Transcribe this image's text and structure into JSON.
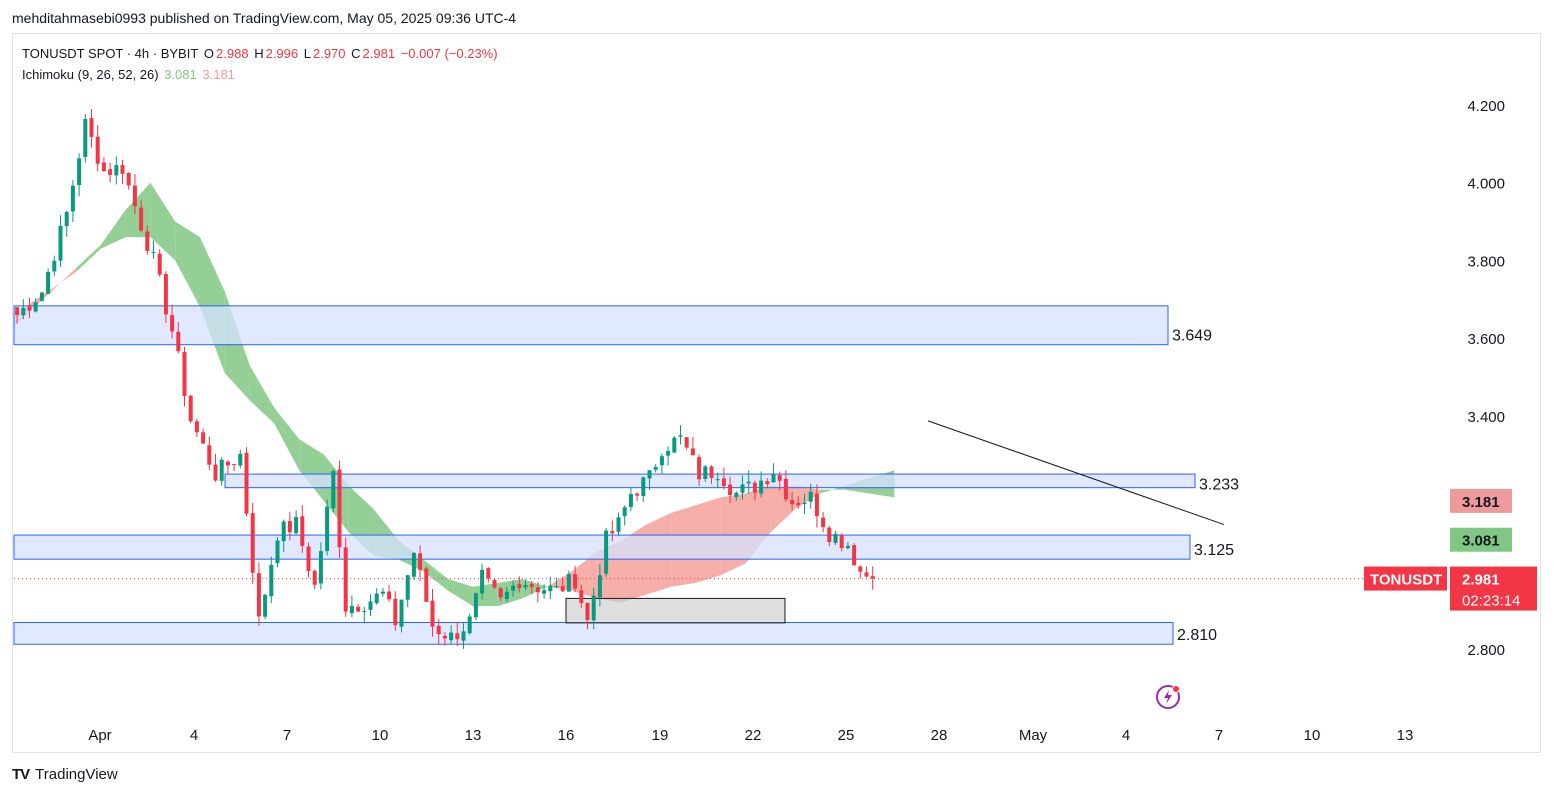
{
  "header": {
    "published": "mehditahmasebi0993 published on TradingView.com, May 05, 2025 09:36 UTC-4"
  },
  "legend": {
    "symbol": "TONUSDT SPOT · 4h · BYBIT",
    "o_label": "O",
    "o": "2.988",
    "h_label": "H",
    "h": "2.996",
    "l_label": "L",
    "l": "2.970",
    "c_label": "C",
    "c": "2.981",
    "change": "−0.007 (−0.23%)",
    "indicator": "Ichimoku (9, 26, 52, 26)",
    "ind_v1": "3.081",
    "ind_v2": "3.181"
  },
  "footer": {
    "brand": "TradingView",
    "brand_mark": "TV"
  },
  "colors": {
    "up": "#089981",
    "down": "#f23645",
    "cloud_bull": "#81c784",
    "cloud_bear": "#f4a09a",
    "zone_fill": "#d6e2ff",
    "zone_border": "#2962ff"
  },
  "chart_data": {
    "type": "candlestick",
    "symbol": "TONUSDT",
    "timeframe": "4h",
    "y_ticks": [
      "4.200",
      "4.000",
      "3.800",
      "3.600",
      "3.400",
      "2.800"
    ],
    "ylim": [
      2.62,
      4.38
    ],
    "x_ticks": [
      "Apr",
      "4",
      "7",
      "10",
      "13",
      "16",
      "19",
      "22",
      "25",
      "28",
      "May",
      "4",
      "7",
      "10",
      "13"
    ],
    "last_price": {
      "label": "TONUSDT",
      "value": "2.981",
      "countdown": "02:23:14",
      "price": 2.981
    },
    "ichimoku_labels": [
      {
        "value": "3.181",
        "price": 3.181,
        "kind": "span_b"
      },
      {
        "value": "3.081",
        "price": 3.081,
        "kind": "span_a"
      }
    ],
    "zones": [
      {
        "top": 3.683,
        "bottom": 3.583,
        "label": "3.649"
      },
      {
        "top": 3.25,
        "bottom": 3.215,
        "label": "3.233"
      },
      {
        "top": 3.093,
        "bottom": 3.031,
        "label": "3.125"
      },
      {
        "top": 2.868,
        "bottom": 2.812,
        "label": "2.810"
      }
    ],
    "small_box": {
      "top": 2.93,
      "bottom": 2.867
    },
    "trendline": {
      "from": 3.387,
      "to": 3.12
    },
    "price_path": [
      [
        0,
        3.66
      ],
      [
        4,
        3.72
      ],
      [
        8,
        3.92
      ],
      [
        11,
        4.15
      ],
      [
        14,
        4.03
      ],
      [
        17,
        4.04
      ],
      [
        19,
        3.94
      ],
      [
        22,
        3.8
      ],
      [
        25,
        3.62
      ],
      [
        28,
        3.39
      ],
      [
        32,
        3.25
      ],
      [
        36,
        3.3
      ],
      [
        39,
        2.87
      ],
      [
        42,
        3.1
      ],
      [
        45,
        3.12
      ],
      [
        48,
        2.96
      ],
      [
        51,
        3.25
      ],
      [
        53,
        2.91
      ],
      [
        56,
        2.92
      ],
      [
        59,
        2.94
      ],
      [
        61,
        2.87
      ],
      [
        64,
        3.05
      ],
      [
        67,
        2.86
      ],
      [
        70,
        2.83
      ],
      [
        73,
        2.87
      ],
      [
        75,
        2.98
      ],
      [
        78,
        2.92
      ],
      [
        81,
        2.98
      ],
      [
        84,
        2.96
      ],
      [
        87,
        2.95
      ],
      [
        90,
        2.98
      ],
      [
        92,
        2.87
      ],
      [
        95,
        3.08
      ],
      [
        97,
        3.12
      ],
      [
        99,
        3.2
      ],
      [
        102,
        3.24
      ],
      [
        104,
        3.32
      ],
      [
        107,
        3.34
      ],
      [
        110,
        3.25
      ],
      [
        113,
        3.26
      ],
      [
        116,
        3.2
      ],
      [
        119,
        3.22
      ],
      [
        122,
        3.26
      ],
      [
        125,
        3.18
      ],
      [
        128,
        3.19
      ],
      [
        131,
        3.1
      ],
      [
        134,
        3.07
      ],
      [
        136,
        3.0
      ],
      [
        138,
        2.981
      ]
    ],
    "ichimoku_cloud": {
      "x_start": -26,
      "bull_top": [
        [
          -26,
          3.63
        ],
        [
          -16,
          3.78
        ],
        [
          -12,
          3.84
        ],
        [
          -8,
          3.93
        ],
        [
          -4,
          4.0
        ],
        [
          0,
          3.9
        ],
        [
          4,
          3.86
        ],
        [
          8,
          3.72
        ],
        [
          12,
          3.53
        ],
        [
          16,
          3.42
        ],
        [
          20,
          3.34
        ],
        [
          24,
          3.3
        ],
        [
          28,
          3.22
        ],
        [
          32,
          3.16
        ],
        [
          36,
          3.08
        ],
        [
          40,
          3.03
        ],
        [
          44,
          2.98
        ],
        [
          48,
          2.96
        ],
        [
          52,
          2.97
        ],
        [
          56,
          2.98
        ],
        [
          60,
          2.96
        ],
        [
          64,
          2.95
        ],
        [
          68,
          2.93
        ],
        [
          72,
          2.92
        ],
        [
          76,
          2.94
        ],
        [
          80,
          2.96
        ],
        [
          84,
          2.97
        ],
        [
          88,
          2.99
        ],
        [
          92,
          3.02
        ],
        [
          96,
          3.1
        ],
        [
          100,
          3.16
        ],
        [
          104,
          3.2
        ],
        [
          108,
          3.22
        ],
        [
          112,
          3.24
        ],
        [
          116,
          3.26
        ]
      ],
      "bear_top": [
        [
          -26,
          3.66
        ],
        [
          -16,
          3.77
        ],
        [
          -12,
          3.83
        ],
        [
          -8,
          3.86
        ],
        [
          -4,
          3.86
        ],
        [
          0,
          3.8
        ],
        [
          4,
          3.68
        ],
        [
          8,
          3.51
        ],
        [
          12,
          3.44
        ],
        [
          16,
          3.38
        ],
        [
          20,
          3.26
        ],
        [
          24,
          3.18
        ],
        [
          28,
          3.1
        ],
        [
          32,
          3.04
        ],
        [
          36,
          3.03
        ],
        [
          40,
          3.0
        ],
        [
          44,
          2.95
        ],
        [
          48,
          2.91
        ],
        [
          52,
          2.91
        ],
        [
          56,
          2.93
        ],
        [
          60,
          2.96
        ],
        [
          64,
          3.0
        ],
        [
          68,
          3.05
        ],
        [
          72,
          3.08
        ],
        [
          76,
          3.12
        ],
        [
          80,
          3.15
        ],
        [
          84,
          3.17
        ],
        [
          88,
          3.19
        ],
        [
          92,
          3.2
        ],
        [
          96,
          3.22
        ],
        [
          100,
          3.22
        ],
        [
          104,
          3.21
        ],
        [
          108,
          3.21
        ],
        [
          112,
          3.2
        ],
        [
          116,
          3.19
        ]
      ]
    }
  }
}
